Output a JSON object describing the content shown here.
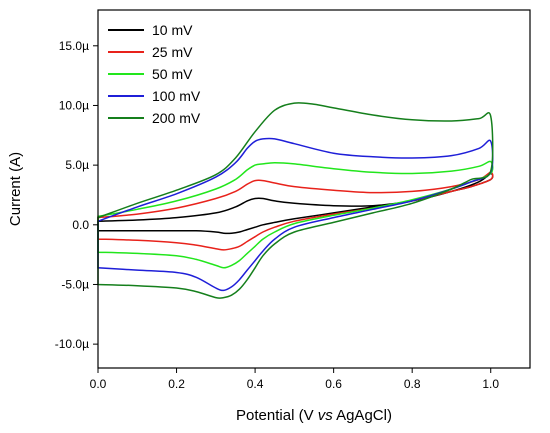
{
  "chart_data": {
    "type": "line",
    "xlabel_pre": "Potential (V ",
    "xlabel_italic": "vs",
    "xlabel_post": " AgAgCl)",
    "ylabel": "Current (A)",
    "xlim": [
      0.0,
      1.1
    ],
    "ylim": [
      -12.0,
      18.0
    ],
    "x_ticks": [
      0.0,
      0.2,
      0.4,
      0.6,
      0.8,
      1.0
    ],
    "x_tick_labels": [
      "0.0",
      "0.2",
      "0.4",
      "0.6",
      "0.8",
      "1.0"
    ],
    "y_ticks": [
      -10,
      -5,
      0,
      5,
      10,
      15
    ],
    "y_tick_labels": [
      "-10.0µ",
      "-5.0µ",
      "0.0",
      "5.0µ",
      "10.0µ",
      "15.0µ"
    ],
    "grid": false,
    "legend_position": "top-left",
    "series": [
      {
        "name": "10 mV",
        "color": "#000000",
        "x": [
          0.0,
          0.1,
          0.2,
          0.3,
          0.35,
          0.38,
          0.4,
          0.42,
          0.45,
          0.5,
          0.6,
          0.7,
          0.8,
          0.9,
          0.97,
          1.0,
          1.0,
          0.95,
          0.9,
          0.8,
          0.7,
          0.6,
          0.5,
          0.45,
          0.42,
          0.4,
          0.38,
          0.36,
          0.34,
          0.32,
          0.3,
          0.25,
          0.2,
          0.1,
          0.0
        ],
        "y": [
          0.3,
          0.4,
          0.6,
          1.0,
          1.5,
          2.0,
          2.2,
          2.2,
          2.0,
          1.8,
          1.6,
          1.6,
          2.0,
          2.8,
          3.6,
          4.3,
          3.8,
          3.2,
          2.8,
          2.0,
          1.5,
          1.0,
          0.5,
          0.2,
          0.0,
          -0.2,
          -0.4,
          -0.6,
          -0.7,
          -0.7,
          -0.6,
          -0.5,
          -0.5,
          -0.5,
          -0.5
        ]
      },
      {
        "name": "25 mV",
        "color": "#e8221b",
        "x": [
          0.0,
          0.1,
          0.2,
          0.3,
          0.35,
          0.38,
          0.4,
          0.42,
          0.45,
          0.5,
          0.6,
          0.7,
          0.8,
          0.9,
          0.97,
          1.0,
          1.0,
          0.95,
          0.9,
          0.8,
          0.7,
          0.6,
          0.5,
          0.45,
          0.42,
          0.4,
          0.38,
          0.36,
          0.34,
          0.32,
          0.3,
          0.25,
          0.2,
          0.1,
          0.0
        ],
        "y": [
          0.6,
          0.9,
          1.4,
          2.2,
          2.8,
          3.4,
          3.7,
          3.7,
          3.5,
          3.2,
          2.9,
          2.7,
          2.8,
          3.2,
          3.8,
          4.4,
          3.8,
          3.2,
          2.8,
          2.0,
          1.4,
          0.9,
          0.3,
          -0.2,
          -0.6,
          -1.0,
          -1.4,
          -1.8,
          -2.0,
          -2.1,
          -2.0,
          -1.7,
          -1.5,
          -1.3,
          -1.2
        ]
      },
      {
        "name": "50 mV",
        "color": "#22e61c",
        "x": [
          0.0,
          0.1,
          0.2,
          0.3,
          0.35,
          0.38,
          0.4,
          0.42,
          0.45,
          0.5,
          0.6,
          0.7,
          0.8,
          0.9,
          0.97,
          1.0,
          1.0,
          0.95,
          0.9,
          0.8,
          0.7,
          0.6,
          0.5,
          0.45,
          0.42,
          0.4,
          0.38,
          0.36,
          0.34,
          0.32,
          0.3,
          0.25,
          0.2,
          0.1,
          0.0
        ],
        "y": [
          0.7,
          1.3,
          2.0,
          3.0,
          3.8,
          4.6,
          5.0,
          5.1,
          5.2,
          5.1,
          4.7,
          4.4,
          4.3,
          4.5,
          4.9,
          5.3,
          4.3,
          3.6,
          3.0,
          2.1,
          1.4,
          0.8,
          0.1,
          -0.6,
          -1.2,
          -1.8,
          -2.4,
          -3.0,
          -3.4,
          -3.6,
          -3.4,
          -2.9,
          -2.6,
          -2.4,
          -2.3
        ]
      },
      {
        "name": "100 mV",
        "color": "#1f1fd8",
        "x": [
          0.0,
          0.1,
          0.2,
          0.3,
          0.35,
          0.38,
          0.4,
          0.42,
          0.45,
          0.5,
          0.6,
          0.7,
          0.8,
          0.9,
          0.97,
          1.0,
          1.0,
          0.95,
          0.9,
          0.8,
          0.7,
          0.6,
          0.5,
          0.45,
          0.42,
          0.4,
          0.38,
          0.36,
          0.34,
          0.32,
          0.3,
          0.25,
          0.2,
          0.1,
          0.0
        ],
        "y": [
          0.3,
          1.5,
          2.6,
          4.0,
          5.2,
          6.4,
          7.0,
          7.2,
          7.2,
          6.8,
          6.0,
          5.7,
          5.6,
          5.8,
          6.4,
          7.0,
          4.4,
          3.6,
          3.0,
          2.0,
          1.3,
          0.6,
          -0.2,
          -1.2,
          -2.2,
          -3.0,
          -3.8,
          -4.6,
          -5.2,
          -5.5,
          -5.3,
          -4.4,
          -4.0,
          -3.8,
          -3.6
        ]
      },
      {
        "name": "200 mV",
        "color": "#157f1c",
        "x": [
          0.0,
          0.1,
          0.2,
          0.3,
          0.35,
          0.4,
          0.45,
          0.5,
          0.55,
          0.6,
          0.7,
          0.8,
          0.9,
          0.97,
          1.0,
          1.0,
          0.95,
          0.9,
          0.8,
          0.7,
          0.6,
          0.5,
          0.45,
          0.42,
          0.4,
          0.38,
          0.36,
          0.34,
          0.32,
          0.3,
          0.25,
          0.2,
          0.1,
          0.0
        ],
        "y": [
          0.6,
          1.8,
          2.9,
          4.2,
          5.6,
          7.8,
          9.6,
          10.2,
          10.1,
          9.8,
          9.2,
          8.8,
          8.7,
          8.9,
          9.1,
          4.5,
          3.8,
          3.0,
          1.8,
          1.0,
          0.2,
          -0.6,
          -1.6,
          -2.6,
          -3.6,
          -4.6,
          -5.4,
          -5.9,
          -6.1,
          -6.1,
          -5.6,
          -5.3,
          -5.1,
          -5.0
        ]
      }
    ]
  }
}
